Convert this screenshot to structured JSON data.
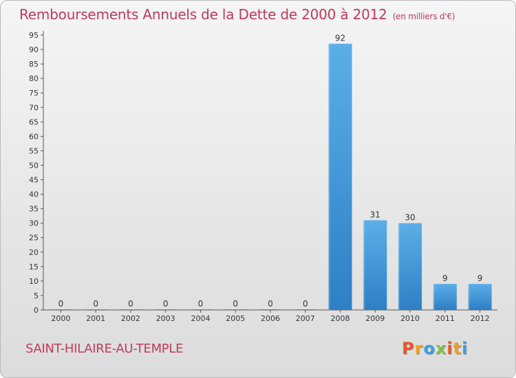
{
  "title": "Remboursements Annuels de la Dette de 2000 à 2012",
  "subtitle": "(en milliers d'€)",
  "commune": "SAINT-HILAIRE-AU-TEMPLE",
  "logo": {
    "letters": [
      "P",
      "r",
      "o",
      "x",
      "i",
      "t",
      "i"
    ],
    "colors": [
      "#e8572a",
      "#f0a020",
      "#3aa0e0",
      "#7cc242",
      "#e8572a",
      "#f0a020",
      "#3aa0e0"
    ]
  },
  "colors": {
    "bar": "#4b9ee0",
    "title": "#c1395a"
  },
  "chart_data": {
    "type": "bar",
    "title": "Remboursements Annuels de la Dette de 2000 à 2012",
    "subtitle": "(en milliers d'€)",
    "categories": [
      "2000",
      "2001",
      "2002",
      "2003",
      "2004",
      "2005",
      "2006",
      "2007",
      "2008",
      "2009",
      "2010",
      "2011",
      "2012"
    ],
    "values": [
      0,
      0,
      0,
      0,
      0,
      0,
      0,
      0,
      92,
      31,
      30,
      9,
      9
    ],
    "ylim": [
      0,
      95
    ],
    "yticks": [
      0,
      5,
      10,
      15,
      20,
      25,
      30,
      35,
      40,
      45,
      50,
      55,
      60,
      65,
      70,
      75,
      80,
      85,
      90,
      95
    ],
    "grid": false,
    "xlabel": "",
    "ylabel": ""
  }
}
